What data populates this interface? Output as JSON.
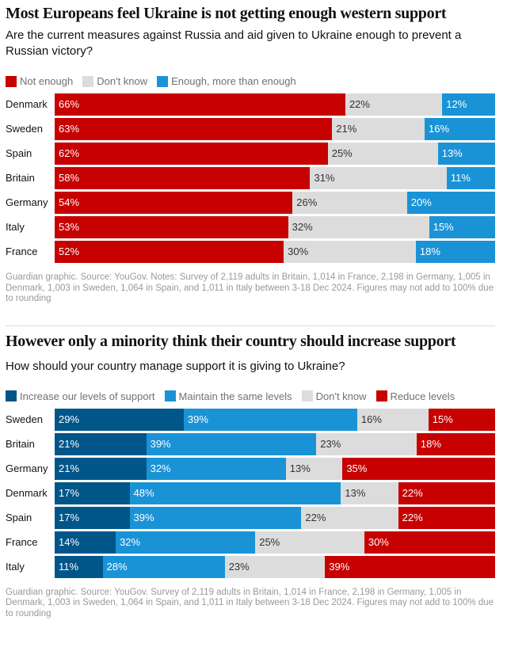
{
  "colors": {
    "red": "#c70000",
    "gray": "#dcdcdc",
    "blue": "#1a93d6",
    "darkblue": "#005689"
  },
  "chart_data": [
    {
      "type": "bar",
      "stacked": true,
      "orientation": "horizontal",
      "title": "Most Europeans feel Ukraine is not getting enough western support",
      "subtitle": "Are the current measures against Russia and aid given to Ukraine enough to prevent a Russian victory?",
      "legend_position": "top-left",
      "categories": [
        "Denmark",
        "Sweden",
        "Spain",
        "Britain",
        "Germany",
        "Italy",
        "France"
      ],
      "series": [
        {
          "name": "Not enough",
          "color": "#c70000",
          "values": [
            66,
            63,
            62,
            58,
            54,
            53,
            52
          ]
        },
        {
          "name": "Don't know",
          "color": "#dcdcdc",
          "values": [
            22,
            21,
            25,
            31,
            26,
            32,
            30
          ]
        },
        {
          "name": "Enough, more than enough",
          "color": "#1a93d6",
          "values": [
            12,
            16,
            13,
            11,
            20,
            15,
            18
          ]
        }
      ],
      "note": "Guardian graphic. Source: YouGov. Notes: Survey of 2,119 adults in Britain, 1,014 in France, 2,198 in Germany, 1,005 in Denmark, 1,003 in Sweden, 1,064 in Spain, and 1,011 in Italy between 3-18 Dec 2024. Figures may not add to 100% due to rounding"
    },
    {
      "type": "bar",
      "stacked": true,
      "orientation": "horizontal",
      "title": "However only a minority think their country should increase support",
      "subtitle": "How should your country manage support it is giving to Ukraine?",
      "legend_position": "top-left",
      "categories": [
        "Sweden",
        "Britain",
        "Germany",
        "Denmark",
        "Spain",
        "France",
        "Italy"
      ],
      "series": [
        {
          "name": "Increase our levels of support",
          "color": "#005689",
          "values": [
            29,
            21,
            21,
            17,
            17,
            14,
            11
          ]
        },
        {
          "name": "Maintain the same levels",
          "color": "#1a93d6",
          "values": [
            39,
            39,
            32,
            48,
            39,
            32,
            28
          ]
        },
        {
          "name": "Don't know",
          "color": "#dcdcdc",
          "values": [
            16,
            23,
            13,
            13,
            22,
            25,
            23
          ]
        },
        {
          "name": "Reduce levels",
          "color": "#c70000",
          "values": [
            15,
            18,
            35,
            22,
            22,
            30,
            39
          ]
        }
      ],
      "note": "Guardian graphic. Source: YouGov. Survey of 2,119 adults in Britain, 1,014 in France, 2,198 in Germany, 1,005 in Denmark, 1,003 in Sweden, 1,064 in Spain, and 1,011 in Italy between 3-18 Dec 2024. Figures may not add to 100% due to rounding"
    }
  ]
}
